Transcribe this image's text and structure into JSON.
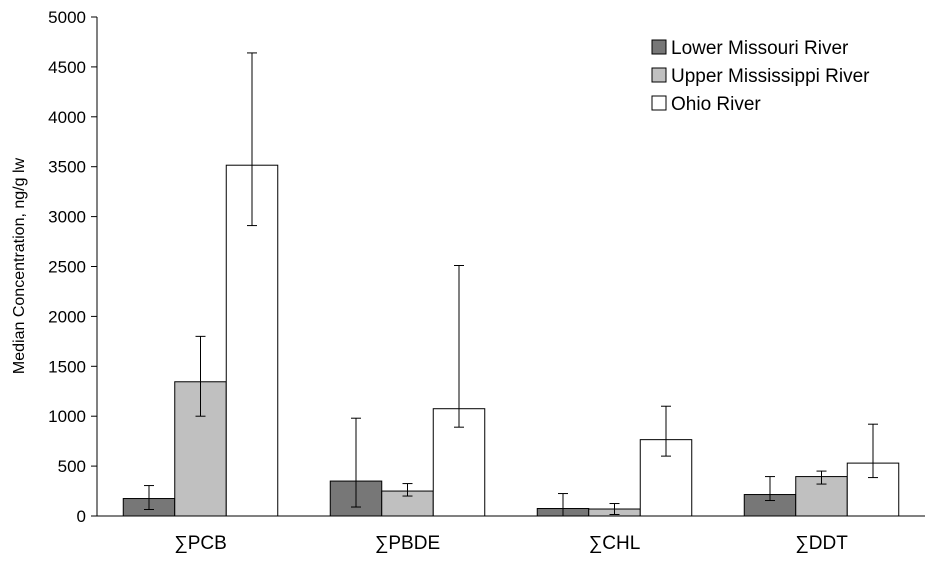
{
  "chart_data": {
    "type": "bar",
    "title": "",
    "xlabel": "",
    "ylabel": "Median Concentration, ng/g lw",
    "ylim": [
      0,
      5000
    ],
    "yticks": [
      0,
      500,
      1000,
      1500,
      2000,
      2500,
      3000,
      3500,
      4000,
      4500,
      5000
    ],
    "grid": false,
    "legend_position": "top-right",
    "categories": [
      "∑PCB",
      "∑PBDE",
      "∑CHL",
      "∑DDT"
    ],
    "series": [
      {
        "name": "Lower Missouri River",
        "color": "#777777",
        "values": [
          175,
          350,
          75,
          215
        ],
        "error_low": [
          65,
          90,
          0,
          155
        ],
        "error_high": [
          305,
          980,
          225,
          395
        ]
      },
      {
        "name": "Upper Mississippi River",
        "color": "#c0c0c0",
        "values": [
          1345,
          250,
          70,
          395
        ],
        "error_low": [
          1000,
          200,
          15,
          320
        ],
        "error_high": [
          1800,
          325,
          125,
          450
        ]
      },
      {
        "name": "Ohio River",
        "color": "#ffffff",
        "values": [
          3515,
          1075,
          765,
          530
        ],
        "error_low": [
          2910,
          890,
          600,
          385
        ],
        "error_high": [
          4640,
          2510,
          1100,
          920
        ]
      }
    ]
  }
}
